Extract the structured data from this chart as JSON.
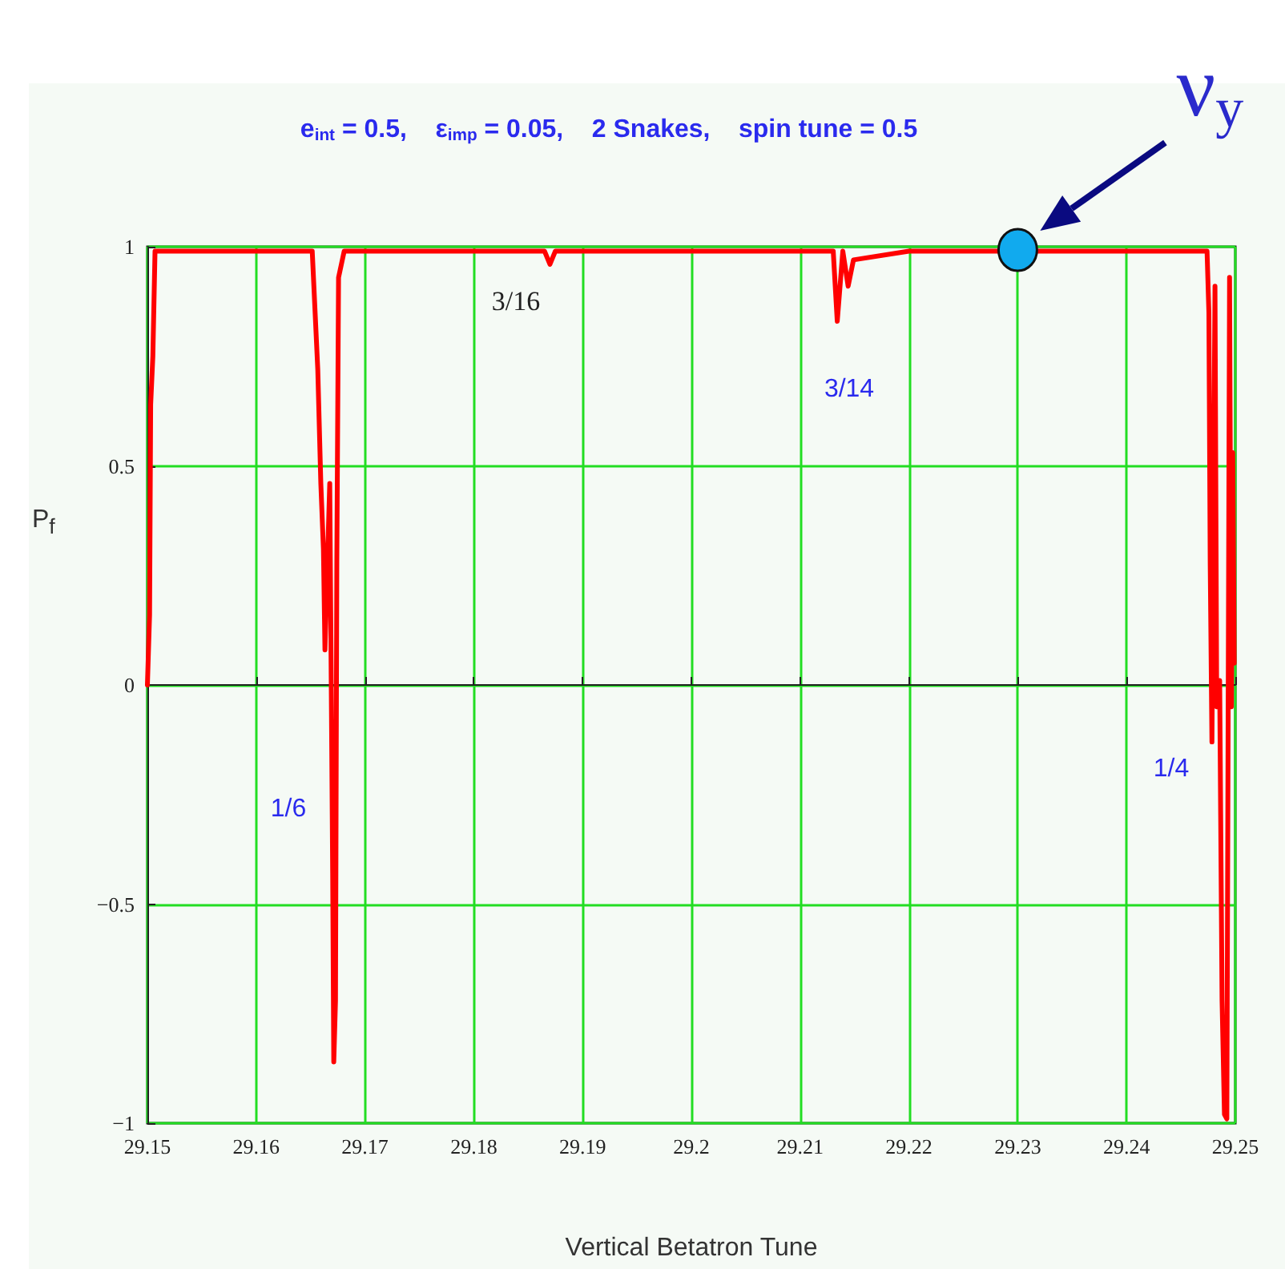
{
  "chart_data": {
    "type": "line",
    "title": "e$_{int}$ = 0.5,    ε$_{imp}$ = 0.05,    2 Snakes,    spin tune = 0.5",
    "xlabel": "Vertical Betatron Tune",
    "ylabel": "P$_{f}$",
    "x": [
      29.15,
      29.1502,
      29.1503,
      29.1505,
      29.1507,
      29.155,
      29.16,
      29.1645,
      29.16515,
      29.16566,
      29.16594,
      29.16618,
      29.16632,
      29.16676,
      29.16703,
      29.16713,
      29.16729,
      29.16741,
      29.16757,
      29.16809,
      29.175,
      29.18,
      29.1865,
      29.187,
      29.1875,
      29.195,
      29.205,
      29.21304,
      29.21341,
      29.21392,
      29.21441,
      29.2149,
      29.22,
      29.23,
      29.24,
      29.2474,
      29.24757,
      29.24769,
      29.24785,
      29.24813,
      29.24829,
      29.24856,
      29.24878,
      29.249,
      29.24922,
      29.24947,
      29.24963,
      29.24976,
      29.2499
    ],
    "series": [
      {
        "color": "#ff0000",
        "values": [
          0,
          0.16,
          0.64,
          0.75,
          0.99,
          0.99,
          0.99,
          0.99,
          0.99,
          0.72,
          0.46,
          0.31,
          0.08,
          0.46,
          -0.43,
          -0.86,
          -0.72,
          0.28,
          0.93,
          0.99,
          0.99,
          0.99,
          0.99,
          0.96,
          0.99,
          0.99,
          0.99,
          0.99,
          0.83,
          0.99,
          0.91,
          0.97,
          0.99,
          0.99,
          0.99,
          0.99,
          0.85,
          0.28,
          -0.13,
          0.91,
          -0.05,
          0.01,
          -0.72,
          -0.98,
          -0.99,
          0.93,
          -0.05,
          0.53,
          0.05
        ]
      }
    ],
    "xlim": [
      29.15,
      29.25
    ],
    "xticks": [
      29.15,
      29.16,
      29.17,
      29.18,
      29.19,
      29.2,
      29.21,
      29.22,
      29.23,
      29.24,
      29.25
    ],
    "ylim": [
      -1,
      1
    ],
    "yticks": [
      {
        "value": -1,
        "label": "−1"
      },
      {
        "value": -0.5,
        "label": "−0.5"
      },
      0,
      0.5,
      1
    ],
    "grid": true,
    "marker": "none",
    "line_style": "solid",
    "annotations": [
      "3/16",
      "3/14",
      "1/6",
      "1/4",
      {
        "text": "ν$_{y}$",
        "x": 29.23,
        "y": 1
      }
    ]
  }
}
